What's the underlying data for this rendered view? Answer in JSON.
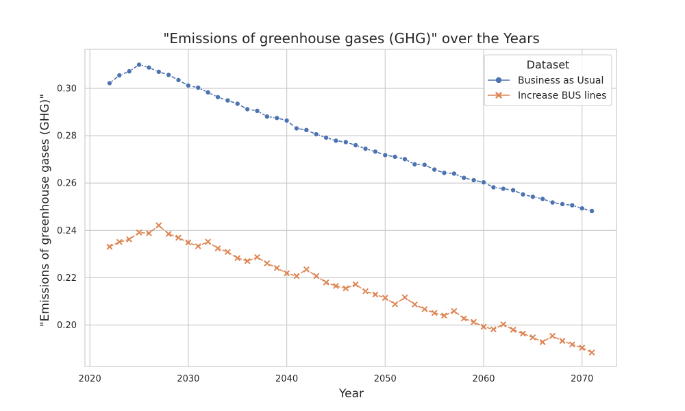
{
  "chart_data": {
    "type": "line",
    "title": "\"Emissions of greenhouse gases (GHG)\" over the Years",
    "xlabel": "Year",
    "ylabel": "\"Emissions of greenhouse gases (GHG)\"",
    "xlim": [
      2019.5,
      2073.5
    ],
    "ylim": [
      0.1825,
      0.3165
    ],
    "xticks": [
      2020,
      2030,
      2040,
      2050,
      2060,
      2070
    ],
    "yticks": [
      0.2,
      0.22,
      0.24,
      0.26,
      0.28,
      0.3
    ],
    "grid": true,
    "legend": {
      "title": "Dataset",
      "position": "top-right"
    },
    "x": [
      2022,
      2023,
      2024,
      2025,
      2026,
      2027,
      2028,
      2029,
      2030,
      2031,
      2032,
      2033,
      2034,
      2035,
      2036,
      2037,
      2038,
      2039,
      2040,
      2041,
      2042,
      2043,
      2044,
      2045,
      2046,
      2047,
      2048,
      2049,
      2050,
      2051,
      2052,
      2053,
      2054,
      2055,
      2056,
      2057,
      2058,
      2059,
      2060,
      2061,
      2062,
      2063,
      2064,
      2065,
      2066,
      2067,
      2068,
      2069,
      2070,
      2071
    ],
    "series": [
      {
        "name": "Business as Usual",
        "color": "#4c72b0",
        "marker": "circle",
        "linestyle": "dashed",
        "values": [
          0.3022,
          0.3055,
          0.3072,
          0.31,
          0.3088,
          0.307,
          0.3057,
          0.3035,
          0.3012,
          0.3003,
          0.2983,
          0.2963,
          0.2949,
          0.2935,
          0.2912,
          0.2905,
          0.2881,
          0.2875,
          0.2864,
          0.2831,
          0.2824,
          0.2806,
          0.2792,
          0.2779,
          0.2773,
          0.276,
          0.2745,
          0.2733,
          0.2718,
          0.2711,
          0.2701,
          0.2679,
          0.2677,
          0.2657,
          0.2643,
          0.264,
          0.2622,
          0.2612,
          0.2603,
          0.2582,
          0.2576,
          0.257,
          0.2552,
          0.2542,
          0.2533,
          0.2518,
          0.2511,
          0.2506,
          0.2493,
          0.2482
        ]
      },
      {
        "name": "Increase BUS lines",
        "color": "#dd8452",
        "marker": "x",
        "linestyle": "dashed",
        "values": [
          0.2331,
          0.2351,
          0.2362,
          0.2391,
          0.2388,
          0.2421,
          0.2385,
          0.2369,
          0.2349,
          0.2333,
          0.2352,
          0.2324,
          0.2309,
          0.2283,
          0.227,
          0.2287,
          0.2261,
          0.2241,
          0.2219,
          0.2207,
          0.2235,
          0.2207,
          0.218,
          0.2165,
          0.2155,
          0.2172,
          0.2143,
          0.2129,
          0.2115,
          0.2088,
          0.2117,
          0.2087,
          0.2067,
          0.2051,
          0.204,
          0.2059,
          0.2028,
          0.2013,
          0.1993,
          0.1982,
          0.2003,
          0.198,
          0.1964,
          0.1948,
          0.1928,
          0.1954,
          0.1933,
          0.1918,
          0.1904,
          0.1884
        ]
      }
    ]
  }
}
